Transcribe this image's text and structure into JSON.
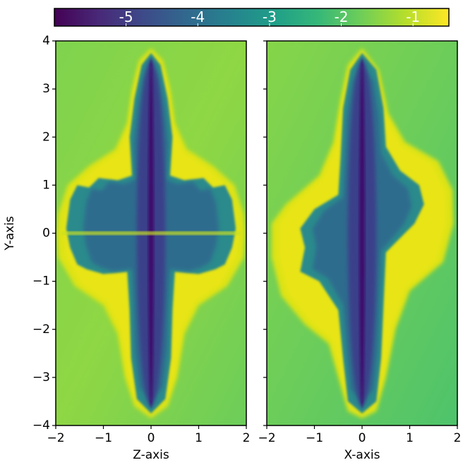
{
  "chart_data": {
    "type": "heatmap",
    "colorbar": {
      "clim": [
        -6,
        -0.5
      ],
      "ticks": [
        -5,
        -4,
        -3,
        -2,
        -1
      ],
      "colormap": "viridis"
    },
    "panels": [
      {
        "xlabel": "Z-axis",
        "ylabel": "Y-axis",
        "xlim": [
          -2,
          2
        ],
        "ylim": [
          -4,
          4
        ],
        "xticks": [
          {
            "value": -2,
            "label": "−2"
          },
          {
            "value": -1,
            "label": "−1"
          },
          0,
          1,
          2
        ],
        "yticks": [
          {
            "value": -4,
            "label": "−4"
          },
          {
            "value": -3,
            "label": "−3"
          },
          {
            "value": -2,
            "label": "−2"
          },
          {
            "value": -1,
            "label": "−1"
          },
          0,
          1,
          2,
          3,
          4
        ],
        "ytick_labels": true
      },
      {
        "xlabel": "X-axis",
        "xlim": [
          -2,
          2
        ],
        "ylim": [
          -4,
          4
        ],
        "xticks": [
          {
            "value": -2,
            "label": "−2"
          },
          {
            "value": -1,
            "label": "−1"
          },
          0,
          1,
          2
        ],
        "yticks": [
          -4,
          -3,
          -2,
          -1,
          0,
          1,
          2,
          3,
          4
        ],
        "ytick_labels": false
      }
    ]
  }
}
